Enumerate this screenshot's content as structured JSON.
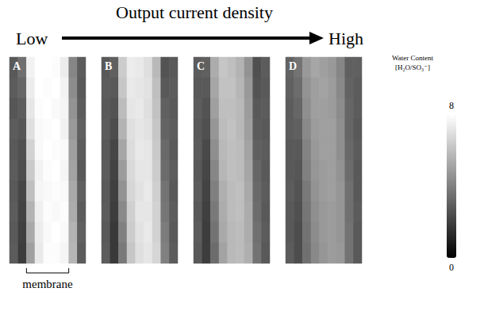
{
  "chart_data": {
    "type": "heatmap",
    "title": "Output current density",
    "annotations": [
      "Low",
      "High"
    ],
    "membrane_label": "membrane",
    "tick_labels": false,
    "colorbar": {
      "label": "Water Content",
      "unit": "[H₂O/SO₃⁻]",
      "range": [
        0,
        8
      ],
      "ticks": [
        0,
        8
      ]
    },
    "panels": [
      {
        "label": "A",
        "cells": [
          [
            2.8,
            3.5,
            7.6,
            8,
            8,
            7.9,
            7.4,
            4.2,
            2.9
          ],
          [
            2.9,
            3.2,
            7.4,
            8,
            7.9,
            8,
            7.6,
            4.4,
            2.8
          ],
          [
            2.7,
            2.9,
            7.2,
            7.9,
            8,
            7.8,
            7.7,
            4.6,
            2.9
          ],
          [
            2.9,
            2.7,
            7.0,
            7.8,
            7.9,
            8,
            7.6,
            4.8,
            3.0
          ],
          [
            2.8,
            2.5,
            6.6,
            7.8,
            8,
            7.9,
            7.8,
            5.0,
            2.9
          ],
          [
            2.9,
            2.4,
            6.3,
            7.6,
            7.9,
            8,
            7.7,
            5.1,
            2.8
          ],
          [
            2.8,
            2.2,
            6.0,
            7.7,
            7.8,
            7.9,
            7.8,
            5.3,
            3.0
          ],
          [
            2.9,
            2.1,
            5.6,
            7.5,
            7.9,
            7.8,
            7.9,
            5.4,
            2.9
          ],
          [
            2.8,
            2.0,
            5.3,
            7.4,
            7.8,
            8,
            7.8,
            5.6,
            3.0
          ],
          [
            2.9,
            1.9,
            5.0,
            7.3,
            7.9,
            7.9,
            7.7,
            5.7,
            2.9
          ]
        ]
      },
      {
        "label": "B",
        "cells": [
          [
            2.8,
            3.0,
            6.4,
            7.4,
            7.3,
            7.0,
            5.8,
            2.6,
            2.8
          ],
          [
            2.9,
            2.8,
            6.2,
            7.3,
            7.2,
            7.1,
            6.0,
            2.8,
            2.9
          ],
          [
            2.8,
            2.6,
            5.9,
            7.2,
            7.3,
            7.0,
            6.1,
            3.0,
            2.8
          ],
          [
            2.9,
            2.4,
            5.6,
            7.0,
            7.2,
            7.1,
            6.2,
            3.1,
            2.9
          ],
          [
            2.8,
            2.2,
            5.2,
            6.9,
            7.3,
            7.2,
            6.3,
            3.3,
            2.8
          ],
          [
            2.9,
            2.1,
            4.9,
            6.8,
            7.2,
            7.2,
            6.4,
            3.4,
            2.9
          ],
          [
            2.8,
            2.0,
            4.6,
            6.7,
            7.1,
            7.3,
            6.5,
            3.6,
            2.8
          ],
          [
            2.9,
            1.9,
            4.3,
            6.5,
            7.2,
            7.2,
            6.6,
            3.7,
            2.9
          ],
          [
            2.8,
            1.8,
            4.0,
            6.4,
            7.1,
            7.3,
            6.6,
            3.9,
            2.8
          ],
          [
            2.9,
            1.8,
            3.8,
            6.2,
            7.0,
            7.2,
            6.7,
            4.0,
            2.9
          ]
        ]
      },
      {
        "label": "C",
        "cells": [
          [
            2.9,
            3.0,
            5.4,
            6.2,
            6.0,
            5.6,
            4.6,
            2.5,
            2.9
          ],
          [
            2.8,
            2.8,
            5.2,
            6.1,
            6.1,
            5.7,
            4.8,
            2.6,
            2.8
          ],
          [
            2.9,
            2.6,
            5.0,
            6.0,
            6.0,
            5.8,
            4.9,
            2.8,
            2.9
          ],
          [
            2.8,
            2.5,
            4.7,
            5.9,
            6.1,
            5.8,
            5.0,
            2.9,
            2.8
          ],
          [
            2.9,
            2.3,
            4.5,
            5.8,
            6.0,
            5.9,
            5.1,
            3.0,
            2.9
          ],
          [
            2.8,
            2.2,
            4.2,
            5.7,
            6.0,
            5.9,
            5.2,
            3.2,
            2.8
          ],
          [
            2.9,
            2.1,
            4.0,
            5.5,
            5.9,
            6.0,
            5.3,
            3.3,
            2.9
          ],
          [
            2.8,
            2.0,
            3.8,
            5.4,
            5.9,
            6.0,
            5.4,
            3.4,
            2.8
          ],
          [
            2.9,
            1.9,
            3.6,
            5.3,
            5.8,
            5.9,
            5.4,
            3.5,
            2.9
          ],
          [
            2.8,
            1.9,
            3.4,
            5.1,
            5.8,
            5.9,
            5.5,
            3.6,
            2.8
          ]
        ]
      },
      {
        "label": "D",
        "cells": [
          [
            3.1,
            3.6,
            4.8,
            5.2,
            5.0,
            4.8,
            4.2,
            3.0,
            3.0
          ],
          [
            3.0,
            3.4,
            4.6,
            5.0,
            5.1,
            4.9,
            4.3,
            3.1,
            2.9
          ],
          [
            2.9,
            3.2,
            4.5,
            5.0,
            5.0,
            4.9,
            4.4,
            3.2,
            2.9
          ],
          [
            2.9,
            3.0,
            4.3,
            4.9,
            5.0,
            5.0,
            4.5,
            3.2,
            2.8
          ],
          [
            2.8,
            2.8,
            4.1,
            4.8,
            5.0,
            5.0,
            4.5,
            3.3,
            2.9
          ],
          [
            2.8,
            2.7,
            4.0,
            4.7,
            4.9,
            5.0,
            4.6,
            3.4,
            2.8
          ],
          [
            2.9,
            2.6,
            3.8,
            4.6,
            4.9,
            5.0,
            4.7,
            3.5,
            2.8
          ],
          [
            2.8,
            2.5,
            3.7,
            4.5,
            4.8,
            4.9,
            4.7,
            3.5,
            2.9
          ],
          [
            2.8,
            2.4,
            3.6,
            4.4,
            4.8,
            4.9,
            4.7,
            3.6,
            2.8
          ],
          [
            2.9,
            2.4,
            3.5,
            4.3,
            4.7,
            4.9,
            4.8,
            3.6,
            2.8
          ]
        ]
      }
    ]
  }
}
